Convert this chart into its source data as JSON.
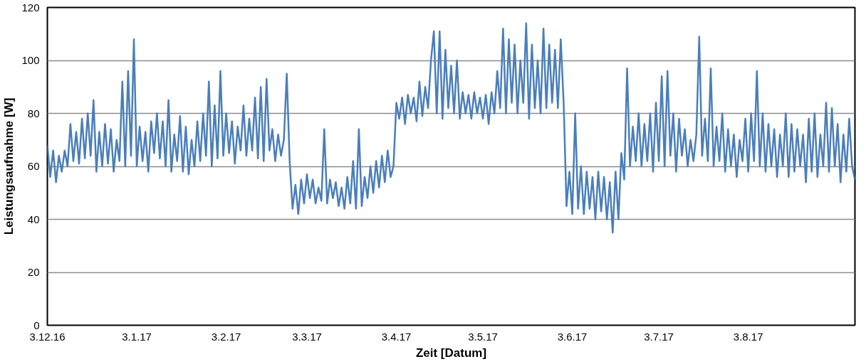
{
  "chart_data": {
    "type": "line",
    "xlabel": "Zeit [Datum]",
    "ylabel": "Leistungsaufnahme [W]",
    "x": [
      "2016-12-03",
      "2016-12-04",
      "2016-12-05",
      "2016-12-06",
      "2016-12-07",
      "2016-12-08",
      "2016-12-09",
      "2016-12-10",
      "2016-12-11",
      "2016-12-12",
      "2016-12-13",
      "2016-12-14",
      "2016-12-15",
      "2016-12-16",
      "2016-12-17",
      "2016-12-18",
      "2016-12-19",
      "2016-12-20",
      "2016-12-21",
      "2016-12-22",
      "2016-12-23",
      "2016-12-24",
      "2016-12-25",
      "2016-12-26",
      "2016-12-27",
      "2016-12-28",
      "2016-12-29",
      "2016-12-30",
      "2016-12-31",
      "2017-01-01",
      "2017-01-02",
      "2017-01-03",
      "2017-01-04",
      "2017-01-05",
      "2017-01-06",
      "2017-01-07",
      "2017-01-08",
      "2017-01-09",
      "2017-01-10",
      "2017-01-11",
      "2017-01-12",
      "2017-01-13",
      "2017-01-14",
      "2017-01-15",
      "2017-01-16",
      "2017-01-17",
      "2017-01-18",
      "2017-01-19",
      "2017-01-20",
      "2017-01-21",
      "2017-01-22",
      "2017-01-23",
      "2017-01-24",
      "2017-01-25",
      "2017-01-26",
      "2017-01-27",
      "2017-01-28",
      "2017-01-29",
      "2017-01-30",
      "2017-01-31",
      "2017-02-01",
      "2017-02-02",
      "2017-02-03",
      "2017-02-04",
      "2017-02-05",
      "2017-02-06",
      "2017-02-07",
      "2017-02-08",
      "2017-02-09",
      "2017-02-10",
      "2017-02-11",
      "2017-02-12",
      "2017-02-13",
      "2017-02-14",
      "2017-02-15",
      "2017-02-16",
      "2017-02-17",
      "2017-02-18",
      "2017-02-19",
      "2017-02-20",
      "2017-02-21",
      "2017-02-22",
      "2017-02-23",
      "2017-02-24",
      "2017-02-25",
      "2017-02-26",
      "2017-02-27",
      "2017-02-28",
      "2017-03-01",
      "2017-03-02",
      "2017-03-03",
      "2017-03-04",
      "2017-03-05",
      "2017-03-06",
      "2017-03-07",
      "2017-03-08",
      "2017-03-09",
      "2017-03-10",
      "2017-03-11",
      "2017-03-12",
      "2017-03-13",
      "2017-03-14",
      "2017-03-15",
      "2017-03-16",
      "2017-03-17",
      "2017-03-18",
      "2017-03-19",
      "2017-03-20",
      "2017-03-21",
      "2017-03-22",
      "2017-03-23",
      "2017-03-24",
      "2017-03-25",
      "2017-03-26",
      "2017-03-27",
      "2017-03-28",
      "2017-03-29",
      "2017-03-30",
      "2017-03-31",
      "2017-04-01",
      "2017-04-02",
      "2017-04-03",
      "2017-04-04",
      "2017-04-05",
      "2017-04-06",
      "2017-04-07",
      "2017-04-08",
      "2017-04-09",
      "2017-04-10",
      "2017-04-11",
      "2017-04-12",
      "2017-04-13",
      "2017-04-14",
      "2017-04-15",
      "2017-04-16",
      "2017-04-17",
      "2017-04-18",
      "2017-04-19",
      "2017-04-20",
      "2017-04-21",
      "2017-04-22",
      "2017-04-23",
      "2017-04-24",
      "2017-04-25",
      "2017-04-26",
      "2017-04-27",
      "2017-04-28",
      "2017-04-29",
      "2017-04-30",
      "2017-05-01",
      "2017-05-02",
      "2017-05-03",
      "2017-05-04",
      "2017-05-05",
      "2017-05-06",
      "2017-05-07",
      "2017-05-08",
      "2017-05-09",
      "2017-05-10",
      "2017-05-11",
      "2017-05-12",
      "2017-05-13",
      "2017-05-14",
      "2017-05-15",
      "2017-05-16",
      "2017-05-17",
      "2017-05-18",
      "2017-05-19",
      "2017-05-20",
      "2017-05-21",
      "2017-05-22",
      "2017-05-23",
      "2017-05-24",
      "2017-05-25",
      "2017-05-26",
      "2017-05-27",
      "2017-05-28",
      "2017-05-29",
      "2017-05-30",
      "2017-05-31",
      "2017-06-01",
      "2017-06-02",
      "2017-06-03",
      "2017-06-04",
      "2017-06-05",
      "2017-06-06",
      "2017-06-07",
      "2017-06-08",
      "2017-06-09",
      "2017-06-10",
      "2017-06-11",
      "2017-06-12",
      "2017-06-13",
      "2017-06-14",
      "2017-06-15",
      "2017-06-16",
      "2017-06-17",
      "2017-06-18",
      "2017-06-19",
      "2017-06-20",
      "2017-06-21",
      "2017-06-22",
      "2017-06-23",
      "2017-06-24",
      "2017-06-25",
      "2017-06-26",
      "2017-06-27",
      "2017-06-28",
      "2017-06-29",
      "2017-06-30",
      "2017-07-01",
      "2017-07-02",
      "2017-07-03",
      "2017-07-04",
      "2017-07-05",
      "2017-07-06",
      "2017-07-07",
      "2017-07-08",
      "2017-07-09",
      "2017-07-10",
      "2017-07-11",
      "2017-07-12",
      "2017-07-13",
      "2017-07-14",
      "2017-07-15",
      "2017-07-16",
      "2017-07-17",
      "2017-07-18",
      "2017-07-19",
      "2017-07-20",
      "2017-07-21",
      "2017-07-22",
      "2017-07-23",
      "2017-07-24",
      "2017-07-25",
      "2017-07-26",
      "2017-07-27",
      "2017-07-28",
      "2017-07-29",
      "2017-07-30",
      "2017-07-31",
      "2017-08-01",
      "2017-08-02",
      "2017-08-03",
      "2017-08-04",
      "2017-08-05",
      "2017-08-06",
      "2017-08-07",
      "2017-08-08",
      "2017-08-09",
      "2017-08-10",
      "2017-08-11",
      "2017-08-12",
      "2017-08-13",
      "2017-08-14",
      "2017-08-15",
      "2017-08-16",
      "2017-08-17",
      "2017-08-18",
      "2017-08-19",
      "2017-08-20",
      "2017-08-21",
      "2017-08-22",
      "2017-08-23",
      "2017-08-24",
      "2017-08-25",
      "2017-08-26",
      "2017-08-27",
      "2017-08-28",
      "2017-08-29",
      "2017-08-30",
      "2017-08-31",
      "2017-09-01",
      "2017-09-02",
      "2017-09-03",
      "2017-09-04",
      "2017-09-05",
      "2017-09-06",
      "2017-09-07",
      "2017-09-08",
      "2017-09-09"
    ],
    "values": [
      68,
      56,
      66,
      54,
      64,
      58,
      66,
      60,
      76,
      62,
      73,
      61,
      78,
      63,
      80,
      64,
      85,
      58,
      73,
      60,
      76,
      61,
      74,
      58,
      70,
      62,
      92,
      60,
      96,
      64,
      108,
      60,
      75,
      62,
      73,
      58,
      77,
      65,
      80,
      63,
      77,
      60,
      85,
      58,
      72,
      62,
      79,
      58,
      75,
      57,
      70,
      60,
      77,
      62,
      80,
      64,
      92,
      60,
      83,
      63,
      96,
      64,
      80,
      65,
      77,
      61,
      75,
      66,
      83,
      64,
      78,
      66,
      86,
      63,
      90,
      62,
      93,
      66,
      74,
      62,
      72,
      64,
      70,
      95,
      62,
      44,
      53,
      42,
      55,
      46,
      57,
      48,
      55,
      46,
      52,
      47,
      74,
      46,
      55,
      48,
      54,
      45,
      52,
      44,
      56,
      46,
      62,
      44,
      74,
      45,
      56,
      48,
      60,
      50,
      62,
      52,
      64,
      54,
      66,
      56,
      60,
      84,
      78,
      86,
      76,
      87,
      80,
      86,
      77,
      92,
      79,
      90,
      82,
      100,
      111,
      80,
      111,
      78,
      104,
      82,
      98,
      80,
      100,
      78,
      88,
      80,
      87,
      78,
      88,
      80,
      86,
      78,
      87,
      76,
      88,
      80,
      96,
      82,
      112,
      80,
      108,
      84,
      106,
      80,
      100,
      84,
      114,
      78,
      106,
      82,
      100,
      80,
      112,
      82,
      106,
      84,
      104,
      82,
      108,
      84,
      45,
      58,
      42,
      80,
      44,
      60,
      42,
      58,
      44,
      56,
      40,
      58,
      43,
      56,
      40,
      54,
      35,
      58,
      40,
      65,
      55,
      97,
      60,
      75,
      62,
      80,
      60,
      76,
      62,
      80,
      58,
      84,
      62,
      94,
      60,
      96,
      64,
      80,
      58,
      78,
      64,
      74,
      60,
      70,
      62,
      72,
      109,
      64,
      78,
      62,
      97,
      60,
      75,
      62,
      80,
      58,
      74,
      60,
      72,
      56,
      70,
      62,
      78,
      58,
      80,
      62,
      96,
      60,
      80,
      58,
      76,
      60,
      74,
      56,
      72,
      60,
      80,
      56,
      76,
      58,
      74,
      60,
      72,
      54,
      78,
      58,
      80,
      56,
      72,
      60,
      84,
      58,
      82,
      60,
      76,
      54,
      72,
      58,
      78,
      60,
      55
    ],
    "color": "#4a7ebb",
    "xlim": [
      "2016-12-03",
      "2017-09-09"
    ],
    "xticks": [
      {
        "value": "2016-12-03",
        "label": "3.12.16"
      },
      {
        "value": "2017-01-03",
        "label": "3.1.17"
      },
      {
        "value": "2017-02-03",
        "label": "3.2.17"
      },
      {
        "value": "2017-03-03",
        "label": "3.3.17"
      },
      {
        "value": "2017-04-03",
        "label": "3.4.17"
      },
      {
        "value": "2017-05-03",
        "label": "3.5.17"
      },
      {
        "value": "2017-06-03",
        "label": "3.6.17"
      },
      {
        "value": "2017-07-03",
        "label": "3.7.17"
      },
      {
        "value": "2017-08-03",
        "label": "3.8.17"
      }
    ],
    "ylim": [
      0,
      120
    ],
    "yticks": [
      0,
      20,
      40,
      60,
      80,
      100,
      120
    ],
    "grid": "y"
  }
}
